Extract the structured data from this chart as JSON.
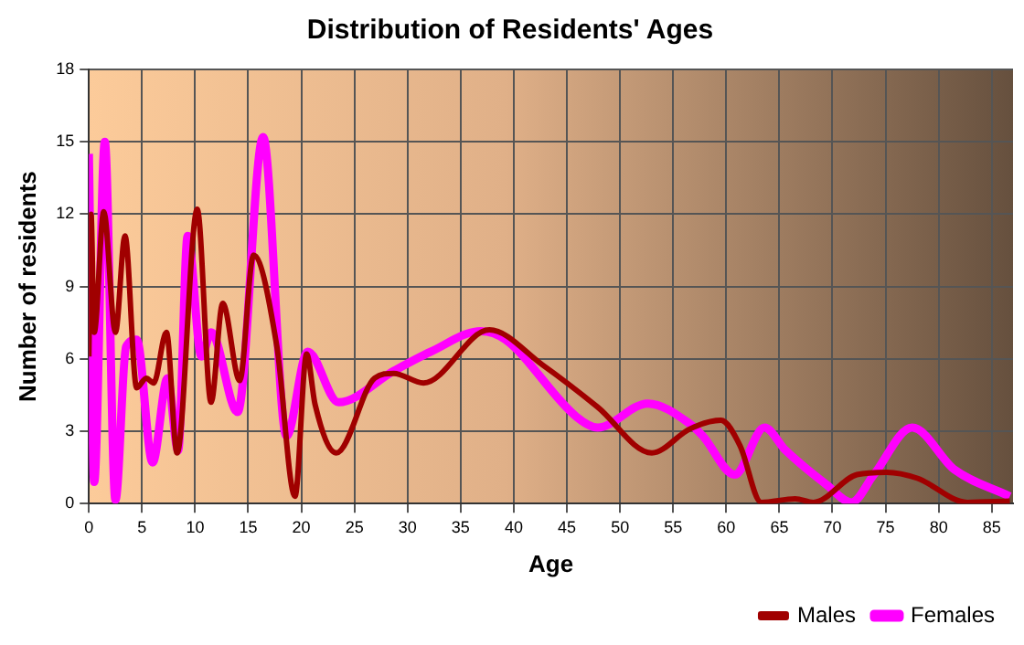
{
  "chart_data": {
    "type": "line",
    "title": "Distribution of Residents' Ages",
    "xlabel": "Age",
    "ylabel": "Number of residents",
    "xlim": [
      0,
      87
    ],
    "xticks": [
      0,
      5,
      10,
      15,
      20,
      25,
      30,
      35,
      40,
      45,
      50,
      55,
      60,
      65,
      70,
      75,
      80,
      85
    ],
    "ylim": [
      0,
      18
    ],
    "yticks": [
      0,
      3,
      6,
      9,
      12,
      15,
      18
    ],
    "grid": true,
    "legend": "bottom right",
    "marker": "none",
    "line_style": "solid",
    "series": [
      {
        "name": "Males",
        "color": "#a00000",
        "x": [
          0,
          0.2,
          0.5,
          1.4,
          2.5,
          3.4,
          4.5,
          5.4,
          6.1,
          7.3,
          8.3,
          10.2,
          11.5,
          12.6,
          14.2,
          15.5,
          17.7,
          19.4,
          20.5,
          21.3,
          23.3,
          26.9,
          28.7,
          31.5,
          37.7,
          42.7,
          47.9,
          53,
          56.6,
          59.5,
          61.3,
          63.3,
          66.5,
          68.2,
          72.3,
          75.1,
          78,
          82.7,
          86.7
        ],
        "values": [
          6.1,
          12,
          7.1,
          12.1,
          7.1,
          11.1,
          4.8,
          5.2,
          5,
          7.1,
          2.1,
          12.2,
          4.2,
          8.3,
          5.1,
          10.3,
          6.5,
          0.3,
          6.2,
          4.1,
          2.1,
          5.2,
          5.4,
          5,
          7.2,
          5.75,
          4,
          2.1,
          3.1,
          3.45,
          2.4,
          0.05,
          0.2,
          0.05,
          1.2,
          1.3,
          1.05,
          0.05,
          0.1
        ]
      },
      {
        "name": "Females",
        "color": "#ff00ff",
        "x": [
          0,
          0.5,
          1.5,
          2.5,
          3.5,
          4.5,
          6,
          7.4,
          8.4,
          9.3,
          10.6,
          11.5,
          14,
          16.4,
          18.6,
          20.6,
          23.5,
          28.7,
          32.2,
          36.9,
          39.2,
          45.9,
          47.9,
          52.6,
          56.6,
          57.8,
          60.8,
          63.6,
          65.6,
          69.4,
          71.8,
          73.9,
          77.5,
          81.5,
          86.7
        ],
        "values": [
          14.5,
          0.9,
          15,
          0.15,
          6.5,
          6.8,
          1.7,
          5.2,
          2.2,
          11.1,
          6.1,
          7.1,
          3.8,
          15.2,
          2.8,
          6.3,
          4.2,
          5.5,
          6.3,
          7.15,
          6.8,
          3.6,
          3.15,
          4.15,
          3.3,
          2.8,
          1.2,
          3.15,
          2.2,
          0.8,
          0.05,
          1.2,
          3.15,
          1.4,
          0.3
        ]
      }
    ]
  }
}
